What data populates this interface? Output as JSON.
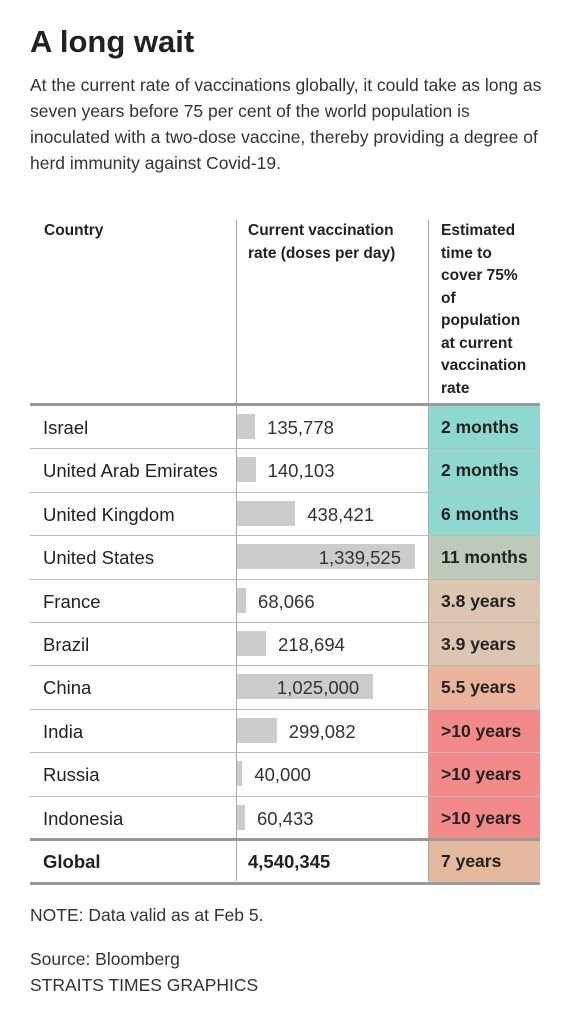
{
  "title": "A long wait",
  "subtitle": "At the current rate of vaccinations globally, it could take as long as seven years before 75 per cent of the world population is inoculated with a two-dose vaccine, thereby providing a degree of herd immunity against Covid-19.",
  "table": {
    "headers": [
      "Country",
      "Current vaccination rate (doses per day)",
      "Estimated time to cover 75% of population at current vaccination rate"
    ],
    "bar_color": "#cccccc",
    "rows": [
      {
        "country": "Israel",
        "rate": 135778,
        "rate_label": "135,778",
        "time": "2 months",
        "color": "#8fd8cf"
      },
      {
        "country": "United Arab Emirates",
        "rate": 140103,
        "rate_label": "140,103",
        "time": "2 months",
        "color": "#8fd8cf"
      },
      {
        "country": "United Kingdom",
        "rate": 438421,
        "rate_label": "438,421",
        "time": "6 months",
        "color": "#8fd8cf"
      },
      {
        "country": "United States",
        "rate": 1339525,
        "rate_label": "1,339,525",
        "time": "11 months",
        "color": "#bccab7"
      },
      {
        "country": "France",
        "rate": 68066,
        "rate_label": "68,066",
        "time": "3.8 years",
        "color": "#dcc6b2"
      },
      {
        "country": "Brazil",
        "rate": 218694,
        "rate_label": "218,694",
        "time": "3.9 years",
        "color": "#dcc6b2"
      },
      {
        "country": "China",
        "rate": 1025000,
        "rate_label": "1,025,000",
        "time": "5.5 years",
        "color": "#ebb29c"
      },
      {
        "country": "India",
        "rate": 299082,
        "rate_label": "299,082",
        "time": ">10 years",
        "color": "#f28a8a"
      },
      {
        "country": "Russia",
        "rate": 40000,
        "rate_label": "40,000",
        "time": ">10 years",
        "color": "#f28a8a"
      },
      {
        "country": "Indonesia",
        "rate": 60433,
        "rate_label": "60,433",
        "time": ">10 years",
        "color": "#f28a8a"
      }
    ],
    "total": {
      "country": "Global",
      "rate": 4540345,
      "rate_label": "4,540,345",
      "time": "7 years",
      "color": "#e4b99d"
    }
  },
  "note": "NOTE: Data valid as at Feb 5.",
  "source": "Source: Bloomberg",
  "credit": "STRAITS TIMES GRAPHICS"
}
